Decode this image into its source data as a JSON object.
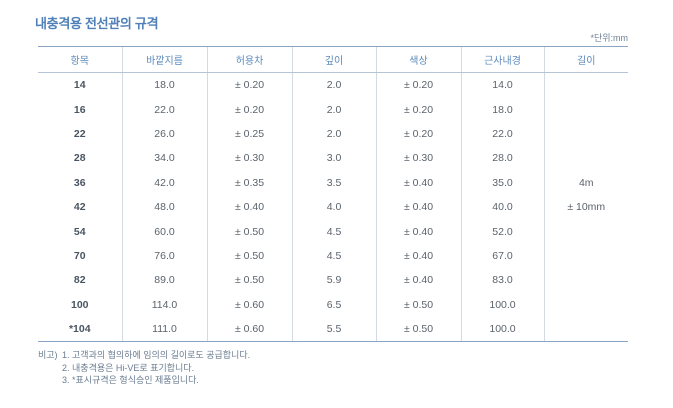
{
  "title": "내충격용 전선관의 규격",
  "unit_note": "*단위:mm",
  "colors": {
    "title": "#4f80b7",
    "header_text": "#5b89bc",
    "rule": "#8aa4c4",
    "body_text": "#5a636c"
  },
  "table": {
    "headers": [
      "항목",
      "바깥지름",
      "허용차",
      "깊이",
      "색상",
      "근사내경",
      "길이"
    ],
    "rows": [
      [
        "14",
        "18.0",
        "± 0.20",
        "2.0",
        "± 0.20",
        "14.0"
      ],
      [
        "16",
        "22.0",
        "± 0.20",
        "2.0",
        "± 0.20",
        "18.0"
      ],
      [
        "22",
        "26.0",
        "± 0.25",
        "2.0",
        "± 0.20",
        "22.0"
      ],
      [
        "28",
        "34.0",
        "± 0.30",
        "3.0",
        "± 0.30",
        "28.0"
      ],
      [
        "36",
        "42.0",
        "± 0.35",
        "3.5",
        "± 0.40",
        "35.0"
      ],
      [
        "42",
        "48.0",
        "± 0.40",
        "4.0",
        "± 0.40",
        "40.0"
      ],
      [
        "54",
        "60.0",
        "± 0.50",
        "4.5",
        "± 0.40",
        "52.0"
      ],
      [
        "70",
        "76.0",
        "± 0.50",
        "4.5",
        "± 0.40",
        "67.0"
      ],
      [
        "82",
        "89.0",
        "± 0.50",
        "5.9",
        "± 0.40",
        "83.0"
      ],
      [
        "100",
        "114.0",
        "± 0.60",
        "6.5",
        "± 0.50",
        "100.0"
      ],
      [
        "*104",
        "111.0",
        "± 0.60",
        "5.5",
        "± 0.50",
        "100.0"
      ]
    ],
    "length_value": "4m",
    "length_tolerance": "± 10mm"
  },
  "notes": {
    "label": "비고)",
    "items": [
      "1. 고객과의 협의하에 임의의 길이로도 공급합니다.",
      "2. 내충격용은 Hi-VE로 표기합니다.",
      "3. *표시규격은 형식승인 제품입니다."
    ]
  }
}
